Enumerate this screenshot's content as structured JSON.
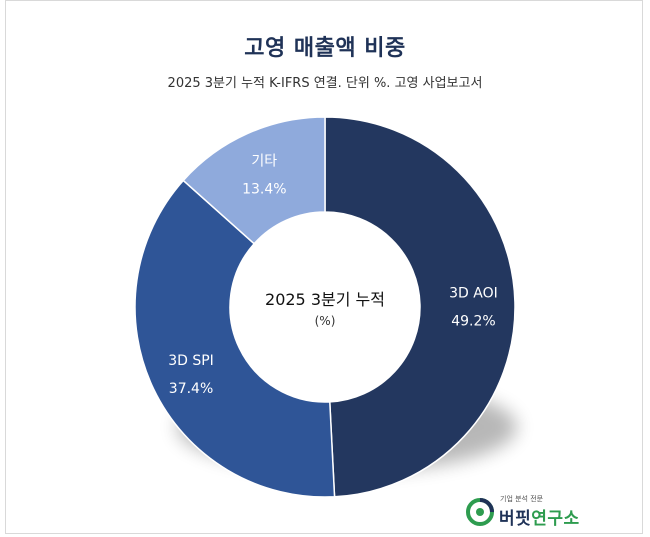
{
  "title": "고영 매출액 비중",
  "subtitle": "2025 3분기 누적 K-IFRS 연결. 단위 %. 고영 사업보고서",
  "chart_data": {
    "type": "pie",
    "donut": true,
    "center_label": "2025 3분기 누적",
    "center_unit": "(%)",
    "slices": [
      {
        "name": "3D AOI",
        "value": 49.2,
        "label": "49.2%",
        "color": "#23375f"
      },
      {
        "name": "3D SPI",
        "value": 37.4,
        "label": "37.4%",
        "color": "#2f5597"
      },
      {
        "name": "기타",
        "value": 13.4,
        "label": "13.4%",
        "color": "#8faadc"
      }
    ],
    "legend": "none"
  },
  "brand": {
    "tagline": "기업 분석 전문",
    "name": "버핏연구소",
    "name_color": "#1f3257",
    "accent_color": "#2e9c4f"
  }
}
